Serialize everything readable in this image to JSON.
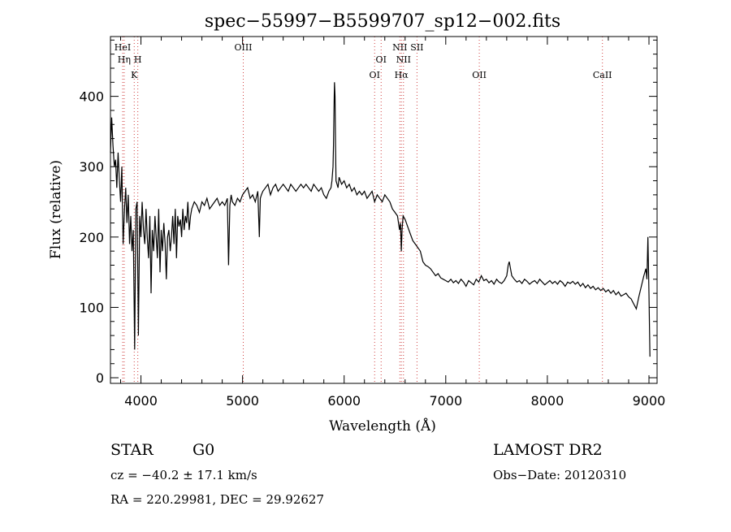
{
  "chart_data": {
    "type": "line",
    "title": "spec−55997−B5599707_sp12−002.fits",
    "xlabel": "Wavelength (Å)",
    "ylabel": "Flux (relative)",
    "xlim": [
      3700,
      9080
    ],
    "ylim": [
      -8,
      485
    ],
    "x_ticks": [
      4000,
      5000,
      6000,
      7000,
      8000,
      9000
    ],
    "x_tick_labels": [
      "4000",
      "5000",
      "6000",
      "7000",
      "8000",
      "9000"
    ],
    "y_ticks": [
      0,
      100,
      200,
      300,
      400
    ],
    "y_tick_labels": [
      "0",
      "100",
      "200",
      "300",
      "400"
    ],
    "grid": false,
    "line_color": "#000000",
    "marker_color": "#d04040",
    "spectral_lines": [
      {
        "x": 3820,
        "labels": [
          "HeI"
        ],
        "row": 0
      },
      {
        "x": 3835,
        "labels": [
          "Hη"
        ],
        "row": 1
      },
      {
        "x": 3934,
        "labels": [
          "K"
        ],
        "row": 2
      },
      {
        "x": 3969,
        "labels": [
          "H"
        ],
        "row": 1
      },
      {
        "x": 5007,
        "labels": [
          "OIII"
        ],
        "row": 0
      },
      {
        "x": 6300,
        "labels": [
          "OI"
        ],
        "row": 2
      },
      {
        "x": 6364,
        "labels": [
          "OI"
        ],
        "row": 1
      },
      {
        "x": 6548,
        "labels": [
          "NII"
        ],
        "row": 0
      },
      {
        "x": 6563,
        "labels": [
          "Hα"
        ],
        "row": 2
      },
      {
        "x": 6584,
        "labels": [
          "NII"
        ],
        "row": 1
      },
      {
        "x": 6717,
        "labels": [
          "SII"
        ],
        "row": 0
      },
      {
        "x": 7330,
        "labels": [
          "OII"
        ],
        "row": 2
      },
      {
        "x": 8542,
        "labels": [
          "CaII"
        ],
        "row": 2
      }
    ],
    "series": [
      {
        "x": [
          3700,
          3712,
          3725,
          3738,
          3750,
          3762,
          3775,
          3788,
          3800,
          3812,
          3825,
          3838,
          3850,
          3862,
          3875,
          3888,
          3900,
          3912,
          3925,
          3938,
          3950,
          3962,
          3975,
          3988,
          4000,
          4012,
          4025,
          4038,
          4050,
          4062,
          4075,
          4088,
          4100,
          4112,
          4125,
          4138,
          4150,
          4162,
          4175,
          4188,
          4200,
          4212,
          4225,
          4238,
          4250,
          4262,
          4275,
          4288,
          4300,
          4312,
          4325,
          4338,
          4350,
          4362,
          4375,
          4388,
          4400,
          4412,
          4425,
          4438,
          4450,
          4462,
          4475,
          4488,
          4500,
          4525,
          4550,
          4575,
          4600,
          4625,
          4650,
          4675,
          4700,
          4725,
          4750,
          4775,
          4800,
          4825,
          4850,
          4862,
          4875,
          4888,
          4900,
          4925,
          4950,
          4975,
          5000,
          5025,
          5050,
          5075,
          5100,
          5125,
          5150,
          5165,
          5175,
          5185,
          5200,
          5225,
          5250,
          5275,
          5300,
          5325,
          5350,
          5375,
          5400,
          5425,
          5450,
          5475,
          5500,
          5525,
          5550,
          5575,
          5600,
          5625,
          5650,
          5675,
          5700,
          5725,
          5750,
          5775,
          5800,
          5825,
          5850,
          5870,
          5880,
          5890,
          5895,
          5900,
          5905,
          5910,
          5915,
          5920,
          5930,
          5940,
          5950,
          5975,
          6000,
          6025,
          6050,
          6075,
          6100,
          6125,
          6150,
          6175,
          6200,
          6225,
          6250,
          6275,
          6300,
          6325,
          6350,
          6375,
          6400,
          6425,
          6450,
          6475,
          6500,
          6525,
          6545,
          6555,
          6563,
          6570,
          6580,
          6600,
          6625,
          6650,
          6675,
          6700,
          6725,
          6750,
          6775,
          6800,
          6825,
          6850,
          6875,
          6900,
          6925,
          6950,
          6975,
          7000,
          7025,
          7050,
          7075,
          7100,
          7125,
          7150,
          7175,
          7200,
          7225,
          7250,
          7275,
          7300,
          7325,
          7350,
          7375,
          7400,
          7425,
          7450,
          7475,
          7500,
          7525,
          7550,
          7575,
          7600,
          7615,
          7625,
          7650,
          7675,
          7700,
          7725,
          7750,
          7775,
          7800,
          7825,
          7850,
          7875,
          7900,
          7925,
          7950,
          7975,
          8000,
          8025,
          8050,
          8075,
          8100,
          8125,
          8150,
          8175,
          8200,
          8225,
          8250,
          8275,
          8300,
          8325,
          8350,
          8375,
          8400,
          8425,
          8450,
          8475,
          8500,
          8525,
          8550,
          8575,
          8600,
          8625,
          8650,
          8675,
          8700,
          8725,
          8750,
          8775,
          8800,
          8825,
          8850,
          8875,
          8900,
          8925,
          8950,
          8970,
          8980,
          8990,
          9000,
          9010
        ],
        "y": [
          320,
          370,
          330,
          300,
          310,
          270,
          320,
          280,
          250,
          300,
          190,
          240,
          270,
          220,
          260,
          190,
          230,
          180,
          210,
          40,
          240,
          250,
          60,
          230,
          200,
          250,
          210,
          190,
          240,
          200,
          170,
          230,
          120,
          210,
          180,
          230,
          200,
          170,
          240,
          150,
          210,
          180,
          220,
          190,
          140,
          200,
          210,
          180,
          200,
          230,
          190,
          240,
          170,
          230,
          215,
          225,
          200,
          240,
          210,
          230,
          220,
          250,
          210,
          230,
          240,
          250,
          245,
          235,
          250,
          245,
          255,
          240,
          245,
          250,
          255,
          245,
          250,
          245,
          255,
          160,
          245,
          260,
          250,
          245,
          255,
          250,
          260,
          265,
          270,
          255,
          260,
          250,
          265,
          200,
          255,
          260,
          265,
          270,
          275,
          260,
          270,
          275,
          265,
          270,
          275,
          270,
          265,
          275,
          270,
          265,
          270,
          275,
          270,
          275,
          270,
          265,
          275,
          270,
          265,
          270,
          260,
          255,
          265,
          270,
          280,
          300,
          330,
          380,
          420,
          400,
          330,
          280,
          275,
          270,
          285,
          275,
          280,
          270,
          275,
          265,
          270,
          260,
          265,
          260,
          265,
          255,
          260,
          265,
          250,
          260,
          255,
          250,
          260,
          255,
          250,
          240,
          235,
          230,
          210,
          220,
          180,
          210,
          230,
          225,
          215,
          205,
          195,
          190,
          185,
          180,
          165,
          160,
          158,
          155,
          150,
          145,
          148,
          142,
          140,
          138,
          136,
          140,
          135,
          138,
          134,
          140,
          136,
          130,
          138,
          135,
          132,
          140,
          136,
          145,
          138,
          140,
          135,
          138,
          133,
          140,
          136,
          134,
          138,
          145,
          160,
          165,
          145,
          140,
          136,
          138,
          134,
          140,
          137,
          133,
          136,
          138,
          134,
          140,
          136,
          132,
          135,
          138,
          134,
          137,
          133,
          138,
          135,
          130,
          136,
          134,
          137,
          133,
          136,
          130,
          134,
          128,
          132,
          127,
          130,
          125,
          128,
          124,
          127,
          122,
          125,
          120,
          124,
          118,
          122,
          116,
          118,
          120,
          115,
          112,
          105,
          98,
          115,
          130,
          145,
          155,
          140,
          200,
          120,
          30
        ]
      }
    ]
  },
  "info": {
    "object_class": "STAR",
    "subclass": "G0",
    "survey": "LAMOST DR2",
    "cz": "cz = −40.2 ± 17.1 km/s",
    "obs_date": "Obs−Date: 20120310",
    "coords": "RA = 220.29981, DEC =  29.92627"
  }
}
